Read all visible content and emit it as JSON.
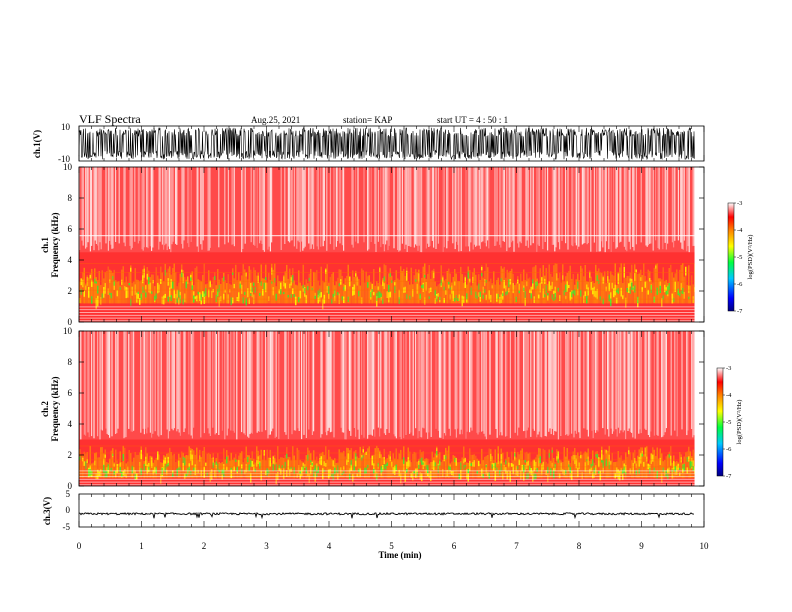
{
  "header": {
    "title": "VLF Spectra",
    "date": "Aug.25, 2021",
    "station": "station= KAP",
    "start": "start  UT  =   4 : 50 : 1"
  },
  "chart_data": [
    {
      "type": "line",
      "name": "ch1-waveform",
      "ylabel": "ch.1(V)",
      "ylim": [
        -10,
        10
      ],
      "yticks": [
        "10",
        "-10"
      ],
      "xlim": [
        0,
        10
      ],
      "data_end_min": 9.85,
      "amplitude_note": "dense noise saturating between about -9 and 9 V"
    },
    {
      "type": "heatmap",
      "name": "ch1-spectrogram",
      "ylabel": "ch.1\nFrequency (kHz)",
      "ylabel_lines": [
        "ch.1",
        "Frequency  (kHz)"
      ],
      "ylim": [
        0,
        10
      ],
      "yticks": [
        "0",
        "2",
        "4",
        "6",
        "8",
        "10"
      ],
      "xlim": [
        0,
        10
      ],
      "colorbar": {
        "label": "log(PSD)(V²/Hz)",
        "range": [
          -7,
          -3
        ],
        "ticks": [
          "-3",
          "-4",
          "-5",
          "-6",
          "-7"
        ]
      },
      "bands_khz": {
        "strong_upper": 4.5,
        "green_band": [
          1.5,
          3.8
        ],
        "white_line": 5.6
      }
    },
    {
      "type": "heatmap",
      "name": "ch2-spectrogram",
      "ylabel": "ch.2\nFrequency (kHz)",
      "ylabel_lines": [
        "ch.2",
        "Frequency  (kHz)"
      ],
      "ylim": [
        0,
        10
      ],
      "yticks": [
        "0",
        "2",
        "4",
        "6",
        "8",
        "10"
      ],
      "xlim": [
        0,
        10
      ],
      "colorbar": {
        "label": "log(PSD)(V²/Hz)",
        "range": [
          -7,
          -3
        ],
        "ticks": [
          "-3",
          "-4",
          "-5",
          "-6",
          "-7"
        ]
      },
      "bands_khz": {
        "strong_upper": 3.0,
        "green_band": [
          0.8,
          2.6
        ]
      }
    },
    {
      "type": "line",
      "name": "ch3-waveform",
      "ylabel": "ch.3(V)",
      "ylim": [
        -5,
        5
      ],
      "yticks": [
        "5",
        "0",
        "-5"
      ],
      "xlim": [
        0,
        10
      ],
      "baseline_v": -1.0,
      "data_end_min": 9.85
    }
  ],
  "xaxis": {
    "label": "Time  (min)",
    "ticks": [
      "0",
      "1",
      "2",
      "3",
      "4",
      "5",
      "6",
      "7",
      "8",
      "9",
      "10"
    ]
  }
}
